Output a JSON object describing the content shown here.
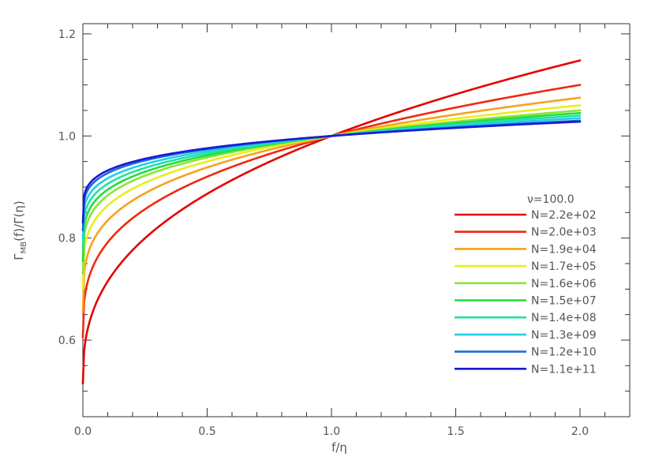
{
  "chart_data": {
    "type": "line",
    "xlabel": "f/η",
    "ylabel_main": "Γ",
    "ylabel_sub": "MB",
    "ylabel_rest": "(f)/Γ(η)",
    "xlim": [
      0.0,
      2.2
    ],
    "ylim": [
      0.45,
      1.22
    ],
    "x_ticks": [
      "0.0",
      "0.5",
      "1.0",
      "1.5",
      "2.0"
    ],
    "y_ticks": [
      "0.6",
      "0.8",
      "1.0",
      "1.2"
    ],
    "legend_title": "ν=100.0",
    "legend_position": "right",
    "grid": false,
    "series": [
      {
        "name": "N=2.2e+02",
        "color": "#e50000",
        "y_at_zero": 0.515,
        "y_at_two": 1.148,
        "shape": 0.4
      },
      {
        "name": "N=2.0e+03",
        "color": "#ee2a10",
        "y_at_zero": 0.605,
        "y_at_two": 1.1,
        "shape": 0.3
      },
      {
        "name": "N=1.9e+04",
        "color": "#f7a21c",
        "y_at_zero": 0.655,
        "y_at_two": 1.075,
        "shape": 0.26
      },
      {
        "name": "N=1.7e+05",
        "color": "#e8ee1c",
        "y_at_zero": 0.7,
        "y_at_two": 1.06,
        "shape": 0.23
      },
      {
        "name": "N=1.6e+06",
        "color": "#8ee23a",
        "y_at_zero": 0.73,
        "y_at_two": 1.05,
        "shape": 0.21
      },
      {
        "name": "N=1.5e+07",
        "color": "#1ee03a",
        "y_at_zero": 0.755,
        "y_at_two": 1.045,
        "shape": 0.19
      },
      {
        "name": "N=1.4e+08",
        "color": "#22e0a6",
        "y_at_zero": 0.78,
        "y_at_two": 1.04,
        "shape": 0.17
      },
      {
        "name": "N=1.3e+09",
        "color": "#1cd2e6",
        "y_at_zero": 0.8,
        "y_at_two": 1.035,
        "shape": 0.15
      },
      {
        "name": "N=1.2e+10",
        "color": "#1e6ad8",
        "y_at_zero": 0.815,
        "y_at_two": 1.03,
        "shape": 0.14
      },
      {
        "name": "N=1.1e+11",
        "color": "#1a1ad2",
        "y_at_zero": 0.83,
        "y_at_two": 1.028,
        "shape": 0.13
      }
    ]
  }
}
